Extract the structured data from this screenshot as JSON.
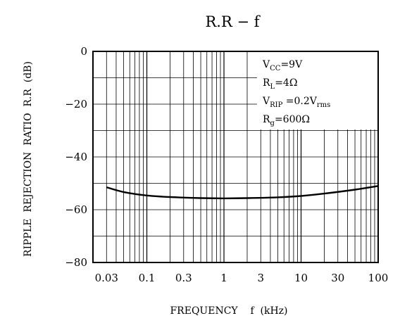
{
  "chart_data": {
    "type": "line",
    "title": "R.R  −  f",
    "xlabel": "FREQUENCY    f  (kHz)",
    "ylabel": "RIPPLE  REJECTION  RATIO  R.R  (dB)",
    "x_scale": "log",
    "xlim": [
      0.02,
      100
    ],
    "ylim": [
      -80,
      0
    ],
    "x_ticks": [
      0.03,
      0.1,
      0.3,
      1,
      3,
      10,
      30,
      100
    ],
    "x_tick_labels": [
      "0.03",
      "0.1",
      "0.3",
      "1",
      "3",
      "10",
      "30",
      "100"
    ],
    "y_ticks": [
      0,
      -20,
      -40,
      -60,
      -80
    ],
    "y_tick_labels": [
      "0",
      "−20",
      "−40",
      "−60",
      "−80"
    ],
    "grid": true,
    "series": [
      {
        "x": [
          0.03,
          0.05,
          0.1,
          0.2,
          0.5,
          1,
          2,
          5,
          10,
          20,
          50,
          100
        ],
        "y": [
          -51.5,
          -53.3,
          -54.6,
          -55.2,
          -55.6,
          -55.7,
          -55.6,
          -55.3,
          -54.8,
          -53.9,
          -52.4,
          -51.0
        ]
      }
    ],
    "annotations": [
      {
        "main": "V",
        "sub": "CC",
        "rest": "=9V"
      },
      {
        "main": "R",
        "sub": "L",
        "rest": "=4Ω"
      },
      {
        "main": "V",
        "sub": "RIP",
        "rest": " =0.2V",
        "sub2": "rms"
      },
      {
        "main": "R",
        "sub": "g",
        "rest": "=600Ω"
      }
    ]
  }
}
